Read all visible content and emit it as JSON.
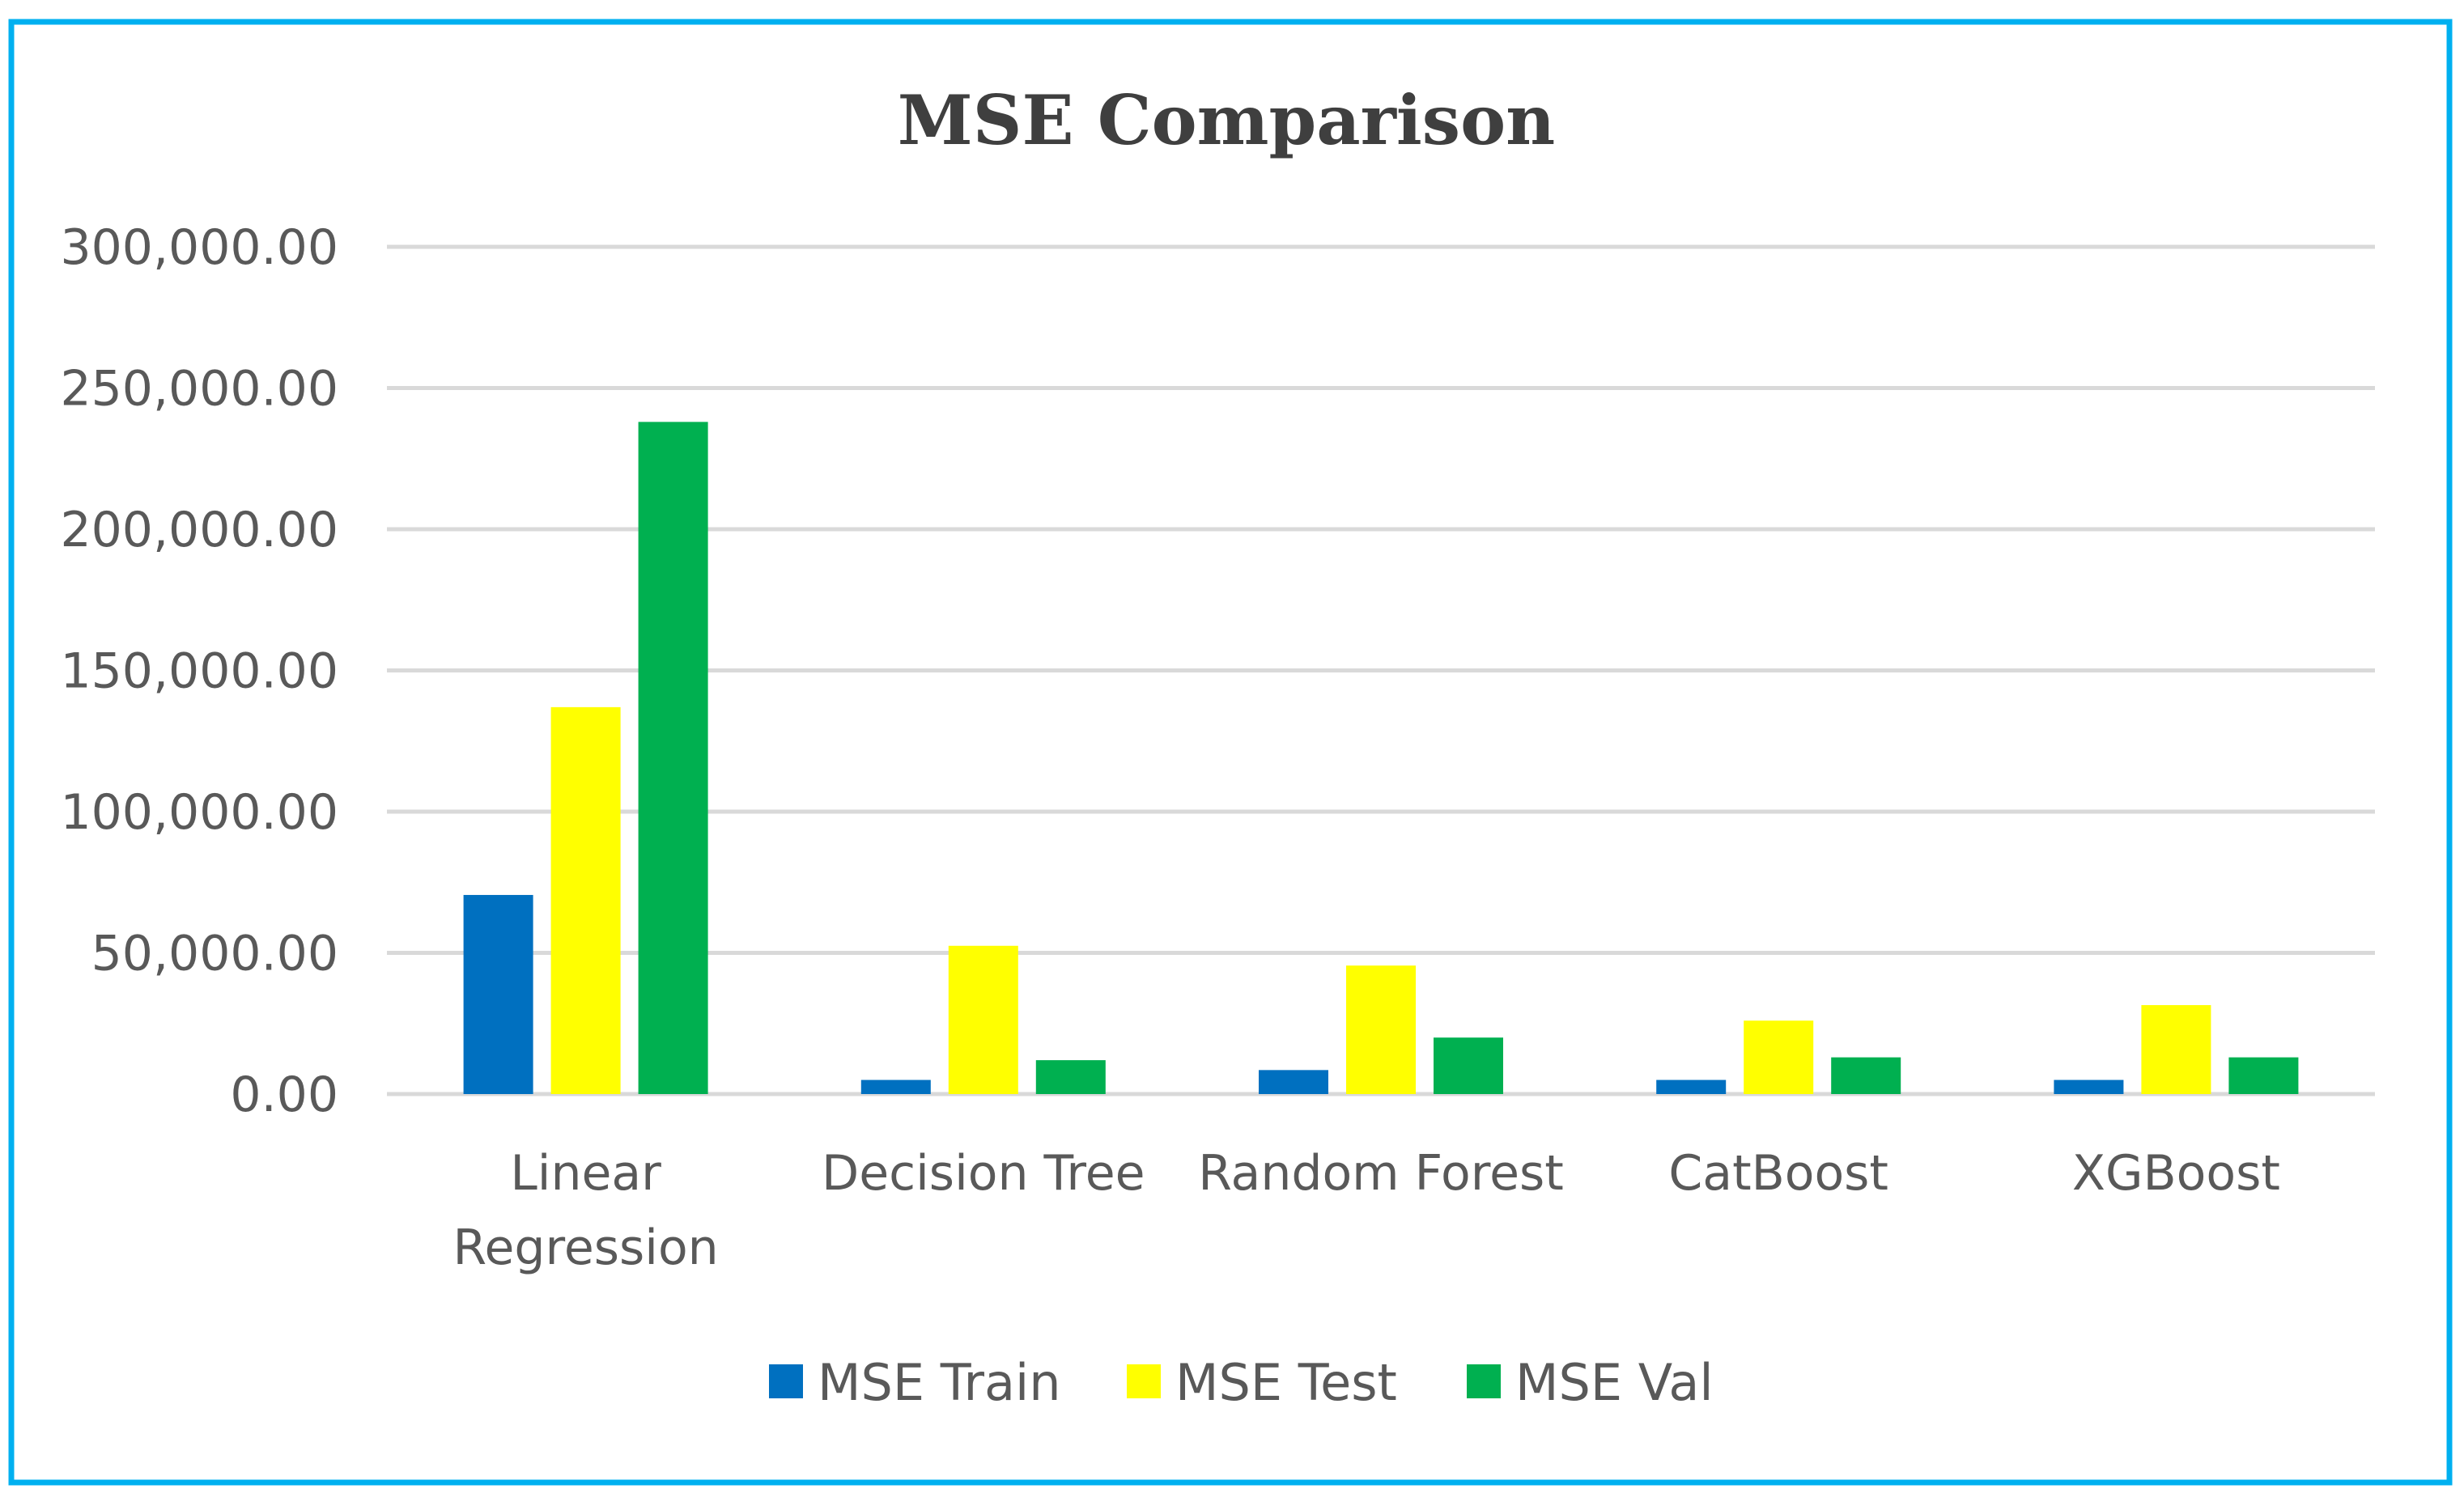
{
  "chart_data": {
    "type": "bar",
    "title": "MSE Comparison",
    "xlabel": "",
    "ylabel": "",
    "ylim": [
      0,
      300000
    ],
    "yticks": [
      0,
      50000,
      100000,
      150000,
      200000,
      250000,
      300000
    ],
    "ytick_labels": [
      "0.00",
      "50,000.00",
      "100,000.00",
      "150,000.00",
      "200,000.00",
      "250,000.00",
      "300,000.00"
    ],
    "categories": [
      [
        "Linear",
        "Regression"
      ],
      [
        "Decision Tree"
      ],
      [
        "Random Forest"
      ],
      [
        "CatBoost"
      ],
      [
        "XGBoost"
      ]
    ],
    "series": [
      {
        "name": "MSE Train",
        "color": "#0070c0",
        "values": [
          70500,
          5000,
          8500,
          5000,
          5000
        ]
      },
      {
        "name": "MSE Test",
        "color": "#ffff00",
        "values": [
          137000,
          52500,
          45500,
          26000,
          31500
        ]
      },
      {
        "name": "MSE Val",
        "color": "#00b050",
        "values": [
          238000,
          12000,
          20000,
          13000,
          13000
        ]
      }
    ],
    "grid": true,
    "legend_position": "bottom",
    "frame_color": "#00b0f0"
  }
}
